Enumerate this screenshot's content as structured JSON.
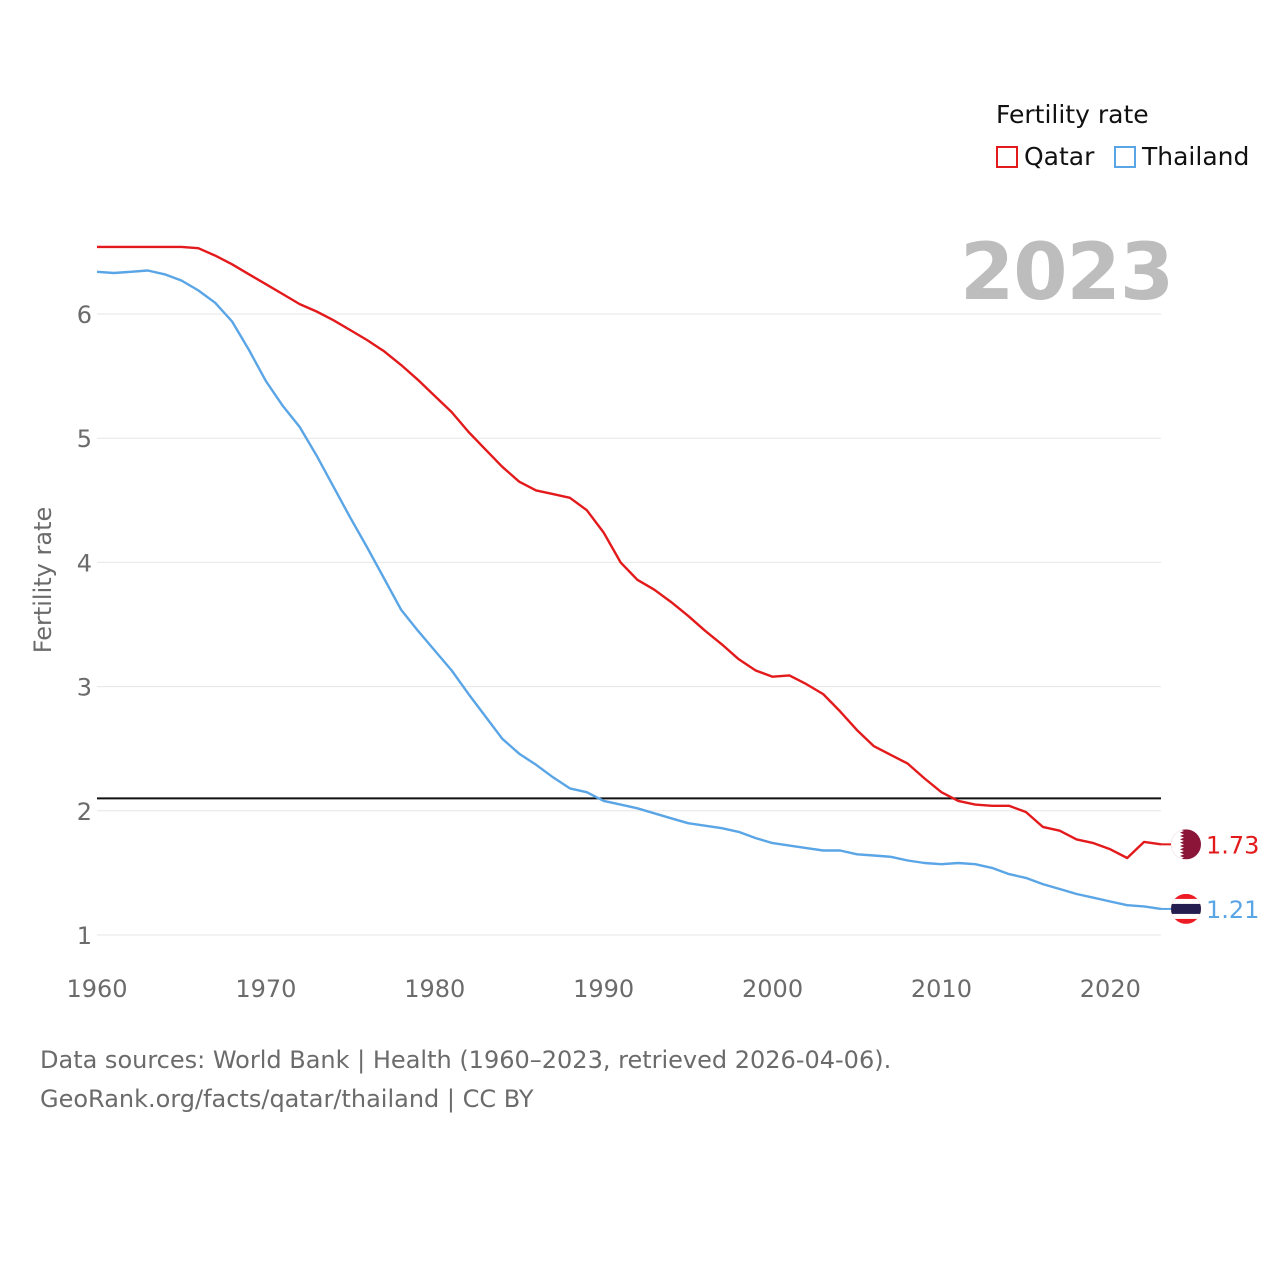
{
  "legend": {
    "title": "Fertility rate",
    "items": [
      {
        "label": "Qatar",
        "color": "#e31a1c"
      },
      {
        "label": "Thailand",
        "color": "#5aa5e6"
      }
    ]
  },
  "year_display": "2023",
  "footer": {
    "sources": "Data sources: World Bank | Health (1960–2023, retrieved 2026-04-06).",
    "credit": "GeoRank.org/facts/qatar/thailand | CC BY"
  },
  "chart_data": {
    "type": "line",
    "title": "",
    "xlabel": "",
    "ylabel": "Fertility rate",
    "xlim": [
      1960,
      2023
    ],
    "ylim": [
      1,
      6.7
    ],
    "xticks": [
      "1960",
      "1970",
      "1980",
      "1990",
      "2000",
      "2010",
      "2020"
    ],
    "yticks": [
      "1",
      "2",
      "3",
      "4",
      "5",
      "6"
    ],
    "reference_line": 2.1,
    "x": [
      1960,
      1961,
      1962,
      1963,
      1964,
      1965,
      1966,
      1967,
      1968,
      1969,
      1970,
      1971,
      1972,
      1973,
      1974,
      1975,
      1976,
      1977,
      1978,
      1979,
      1980,
      1981,
      1982,
      1983,
      1984,
      1985,
      1986,
      1987,
      1988,
      1989,
      1990,
      1991,
      1992,
      1993,
      1994,
      1995,
      1996,
      1997,
      1998,
      1999,
      2000,
      2001,
      2002,
      2003,
      2004,
      2005,
      2006,
      2007,
      2008,
      2009,
      2010,
      2011,
      2012,
      2013,
      2014,
      2015,
      2016,
      2017,
      2018,
      2019,
      2020,
      2021,
      2022,
      2023
    ],
    "series": [
      {
        "name": "Qatar",
        "color": "#e31a1c",
        "end_label": "1.73",
        "values": [
          6.54,
          6.54,
          6.54,
          6.54,
          6.54,
          6.54,
          6.53,
          6.47,
          6.4,
          6.32,
          6.24,
          6.16,
          6.08,
          6.02,
          5.95,
          5.87,
          5.79,
          5.7,
          5.59,
          5.47,
          5.34,
          5.21,
          5.05,
          4.91,
          4.77,
          4.65,
          4.58,
          4.55,
          4.52,
          4.42,
          4.24,
          4.0,
          3.86,
          3.78,
          3.68,
          3.57,
          3.45,
          3.34,
          3.22,
          3.13,
          3.08,
          3.09,
          3.02,
          2.94,
          2.8,
          2.65,
          2.52,
          2.45,
          2.38,
          2.26,
          2.15,
          2.08,
          2.05,
          2.04,
          2.04,
          1.99,
          1.87,
          1.84,
          1.77,
          1.74,
          1.69,
          1.62,
          1.75,
          1.73
        ]
      },
      {
        "name": "Thailand",
        "color": "#5aa5e6",
        "end_label": "1.21",
        "values": [
          6.34,
          6.33,
          6.34,
          6.35,
          6.32,
          6.27,
          6.19,
          6.09,
          5.94,
          5.71,
          5.46,
          5.26,
          5.09,
          4.86,
          4.61,
          4.36,
          4.12,
          3.87,
          3.62,
          3.45,
          3.29,
          3.13,
          2.94,
          2.76,
          2.58,
          2.46,
          2.37,
          2.27,
          2.18,
          2.15,
          2.08,
          2.05,
          2.02,
          1.98,
          1.94,
          1.9,
          1.88,
          1.86,
          1.83,
          1.78,
          1.74,
          1.72,
          1.7,
          1.68,
          1.68,
          1.65,
          1.64,
          1.63,
          1.6,
          1.58,
          1.57,
          1.58,
          1.57,
          1.54,
          1.49,
          1.46,
          1.41,
          1.37,
          1.33,
          1.3,
          1.27,
          1.24,
          1.23,
          1.21
        ]
      }
    ]
  }
}
